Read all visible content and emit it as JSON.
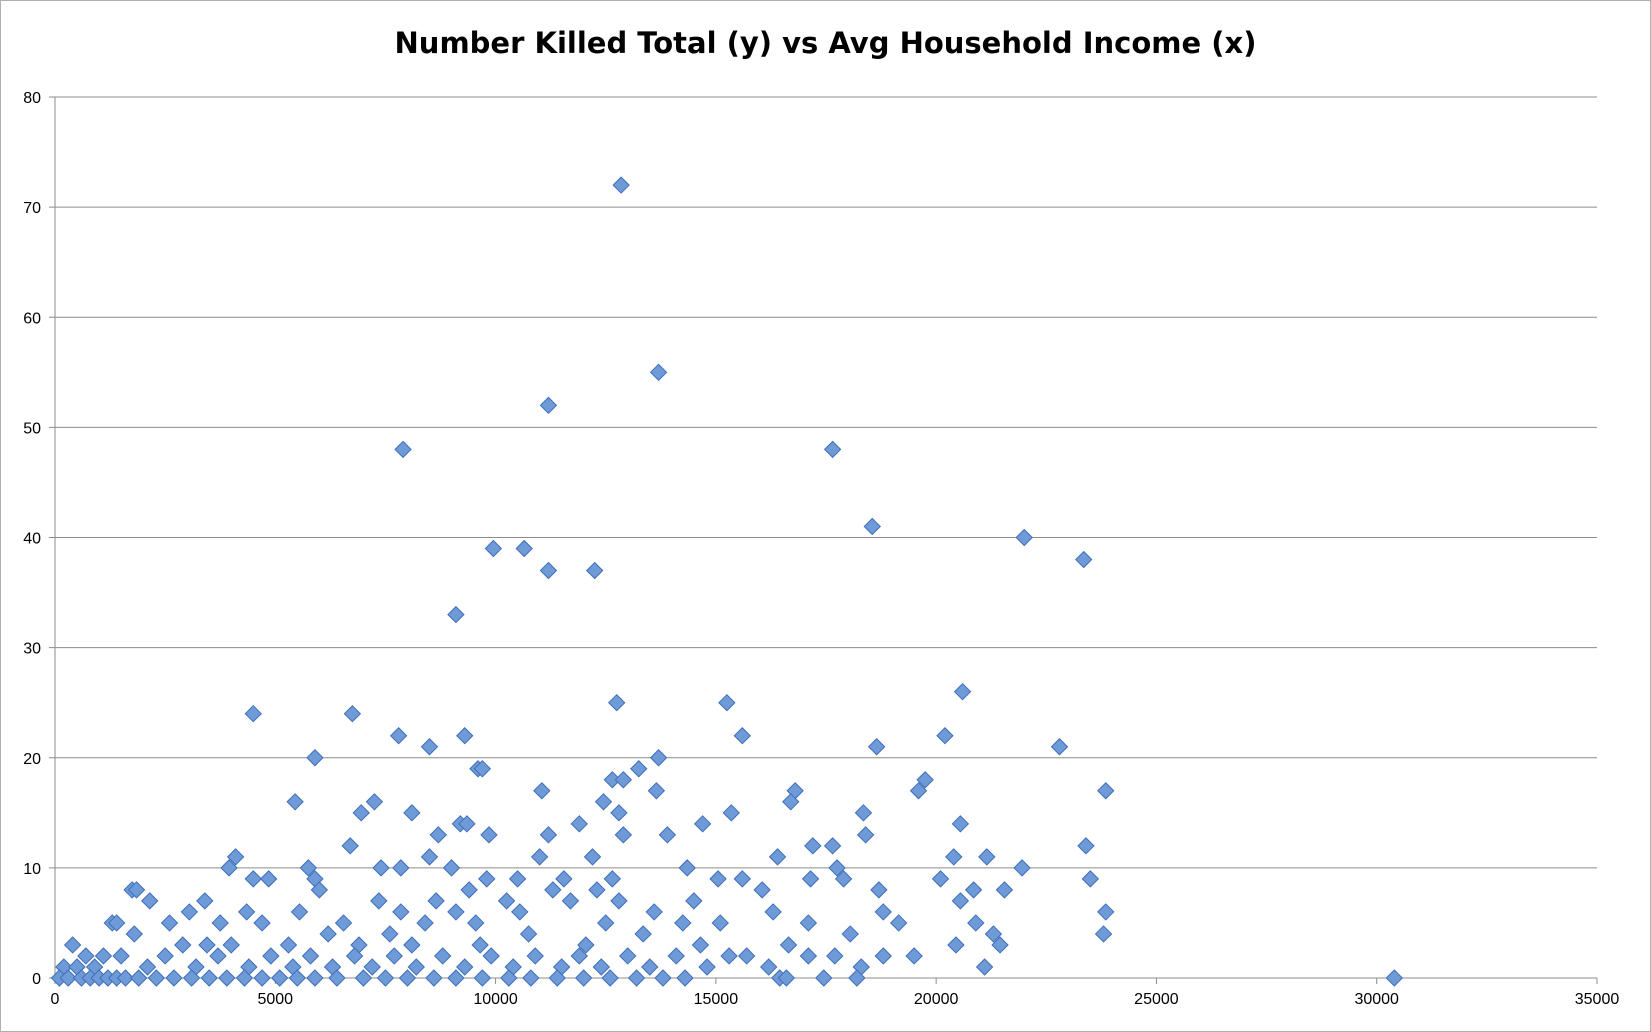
{
  "chart_data": {
    "type": "scatter",
    "title": "Number Killed Total (y) vs Avg Household Income (x)",
    "xlabel": "",
    "ylabel": "",
    "xlim": [
      0,
      35000
    ],
    "ylim": [
      0,
      80
    ],
    "x_ticks": [
      "0",
      "5000",
      "10000",
      "15000",
      "20000",
      "25000",
      "30000",
      "35000"
    ],
    "y_ticks": [
      "0",
      "10",
      "20",
      "30",
      "40",
      "50",
      "60",
      "70",
      "80"
    ],
    "grid": "horizontal",
    "legend": "none",
    "marker": "diamond",
    "colors": {
      "marker_fill": "#6f9ad8",
      "marker_stroke": "#3f6fb8",
      "grid": "#8c8c8c"
    },
    "points": [
      [
        12850,
        72
      ],
      [
        13700,
        55
      ],
      [
        11200,
        52
      ],
      [
        7900,
        48
      ],
      [
        17650,
        48
      ],
      [
        18550,
        41
      ],
      [
        22000,
        40
      ],
      [
        9950,
        39
      ],
      [
        10650,
        39
      ],
      [
        11200,
        37
      ],
      [
        12250,
        37
      ],
      [
        23350,
        38
      ],
      [
        9100,
        33
      ],
      [
        20600,
        26
      ],
      [
        12750,
        25
      ],
      [
        15250,
        25
      ],
      [
        4500,
        24
      ],
      [
        6750,
        24
      ],
      [
        7800,
        22
      ],
      [
        9300,
        22
      ],
      [
        15600,
        22
      ],
      [
        20200,
        22
      ],
      [
        8500,
        21
      ],
      [
        18650,
        21
      ],
      [
        22800,
        21
      ],
      [
        5900,
        20
      ],
      [
        13700,
        20
      ],
      [
        9600,
        19
      ],
      [
        9700,
        19
      ],
      [
        13250,
        19
      ],
      [
        12650,
        18
      ],
      [
        12900,
        18
      ],
      [
        19750,
        18
      ],
      [
        11050,
        17
      ],
      [
        13650,
        17
      ],
      [
        16800,
        17
      ],
      [
        19600,
        17
      ],
      [
        23850,
        17
      ],
      [
        5450,
        16
      ],
      [
        7250,
        16
      ],
      [
        12450,
        16
      ],
      [
        16700,
        16
      ],
      [
        6950,
        15
      ],
      [
        8100,
        15
      ],
      [
        12800,
        15
      ],
      [
        15350,
        15
      ],
      [
        18350,
        15
      ],
      [
        9200,
        14
      ],
      [
        9350,
        14
      ],
      [
        11900,
        14
      ],
      [
        14700,
        14
      ],
      [
        20550,
        14
      ],
      [
        8700,
        13
      ],
      [
        9850,
        13
      ],
      [
        11200,
        13
      ],
      [
        12900,
        13
      ],
      [
        13900,
        13
      ],
      [
        18400,
        13
      ],
      [
        6700,
        12
      ],
      [
        17200,
        12
      ],
      [
        17650,
        12
      ],
      [
        23400,
        12
      ],
      [
        3950,
        10
      ],
      [
        4100,
        11
      ],
      [
        5750,
        10
      ],
      [
        7400,
        10
      ],
      [
        7850,
        10
      ],
      [
        8500,
        11
      ],
      [
        9000,
        10
      ],
      [
        11000,
        11
      ],
      [
        12200,
        11
      ],
      [
        14350,
        10
      ],
      [
        16400,
        11
      ],
      [
        17750,
        10
      ],
      [
        20400,
        11
      ],
      [
        21150,
        11
      ],
      [
        21950,
        10
      ],
      [
        4500,
        9
      ],
      [
        4850,
        9
      ],
      [
        5900,
        9
      ],
      [
        9800,
        9
      ],
      [
        10500,
        9
      ],
      [
        11550,
        9
      ],
      [
        12300,
        8
      ],
      [
        12650,
        9
      ],
      [
        15050,
        9
      ],
      [
        15600,
        9
      ],
      [
        17150,
        9
      ],
      [
        17900,
        9
      ],
      [
        20100,
        9
      ],
      [
        23500,
        9
      ],
      [
        1750,
        8
      ],
      [
        1850,
        8
      ],
      [
        3400,
        7
      ],
      [
        6000,
        8
      ],
      [
        7350,
        7
      ],
      [
        8650,
        7
      ],
      [
        9400,
        8
      ],
      [
        10250,
        7
      ],
      [
        11300,
        8
      ],
      [
        12800,
        7
      ],
      [
        14500,
        7
      ],
      [
        16050,
        8
      ],
      [
        18700,
        8
      ],
      [
        20850,
        8
      ],
      [
        21550,
        8
      ],
      [
        2150,
        7
      ],
      [
        3050,
        6
      ],
      [
        4350,
        6
      ],
      [
        5550,
        6
      ],
      [
        7850,
        6
      ],
      [
        9100,
        6
      ],
      [
        10550,
        6
      ],
      [
        11700,
        7
      ],
      [
        13600,
        6
      ],
      [
        16300,
        6
      ],
      [
        18800,
        6
      ],
      [
        20550,
        7
      ],
      [
        23850,
        6
      ],
      [
        1300,
        5
      ],
      [
        1400,
        5
      ],
      [
        2600,
        5
      ],
      [
        3750,
        5
      ],
      [
        4700,
        5
      ],
      [
        6550,
        5
      ],
      [
        7600,
        4
      ],
      [
        8400,
        5
      ],
      [
        9550,
        5
      ],
      [
        12500,
        5
      ],
      [
        14250,
        5
      ],
      [
        15100,
        5
      ],
      [
        17100,
        5
      ],
      [
        19150,
        5
      ],
      [
        20900,
        5
      ],
      [
        21300,
        4
      ],
      [
        400,
        3
      ],
      [
        1100,
        2
      ],
      [
        1800,
        4
      ],
      [
        2900,
        3
      ],
      [
        3450,
        3
      ],
      [
        4000,
        3
      ],
      [
        5300,
        3
      ],
      [
        6200,
        4
      ],
      [
        6900,
        3
      ],
      [
        8100,
        3
      ],
      [
        9650,
        3
      ],
      [
        10750,
        4
      ],
      [
        12050,
        3
      ],
      [
        13350,
        4
      ],
      [
        14650,
        3
      ],
      [
        16650,
        3
      ],
      [
        18050,
        4
      ],
      [
        20450,
        3
      ],
      [
        21450,
        3
      ],
      [
        23800,
        4
      ],
      [
        200,
        1
      ],
      [
        500,
        1
      ],
      [
        700,
        2
      ],
      [
        900,
        1
      ],
      [
        1500,
        2
      ],
      [
        2100,
        1
      ],
      [
        2500,
        2
      ],
      [
        3200,
        1
      ],
      [
        3700,
        2
      ],
      [
        4400,
        1
      ],
      [
        4900,
        2
      ],
      [
        5400,
        1
      ],
      [
        5800,
        2
      ],
      [
        6300,
        1
      ],
      [
        6800,
        2
      ],
      [
        7200,
        1
      ],
      [
        7700,
        2
      ],
      [
        8200,
        1
      ],
      [
        8800,
        2
      ],
      [
        9300,
        1
      ],
      [
        9900,
        2
      ],
      [
        10400,
        1
      ],
      [
        10900,
        2
      ],
      [
        11500,
        1
      ],
      [
        11900,
        2
      ],
      [
        12400,
        1
      ],
      [
        13000,
        2
      ],
      [
        13500,
        1
      ],
      [
        14100,
        2
      ],
      [
        14800,
        1
      ],
      [
        15300,
        2
      ],
      [
        15700,
        2
      ],
      [
        16200,
        1
      ],
      [
        17100,
        2
      ],
      [
        17700,
        2
      ],
      [
        18300,
        1
      ],
      [
        18800,
        2
      ],
      [
        19500,
        2
      ],
      [
        21100,
        1
      ],
      [
        100,
        0
      ],
      [
        300,
        0
      ],
      [
        600,
        0
      ],
      [
        800,
        0
      ],
      [
        1000,
        0
      ],
      [
        1200,
        0
      ],
      [
        1400,
        0
      ],
      [
        1600,
        0
      ],
      [
        1900,
        0
      ],
      [
        2300,
        0
      ],
      [
        2700,
        0
      ],
      [
        3100,
        0
      ],
      [
        3500,
        0
      ],
      [
        3900,
        0
      ],
      [
        4300,
        0
      ],
      [
        4700,
        0
      ],
      [
        5100,
        0
      ],
      [
        5500,
        0
      ],
      [
        5900,
        0
      ],
      [
        6400,
        0
      ],
      [
        7000,
        0
      ],
      [
        7500,
        0
      ],
      [
        8000,
        0
      ],
      [
        8600,
        0
      ],
      [
        9100,
        0
      ],
      [
        9700,
        0
      ],
      [
        10300,
        0
      ],
      [
        10800,
        0
      ],
      [
        11400,
        0
      ],
      [
        12000,
        0
      ],
      [
        12600,
        0
      ],
      [
        13200,
        0
      ],
      [
        13800,
        0
      ],
      [
        14300,
        0
      ],
      [
        16450,
        0
      ],
      [
        16600,
        0
      ],
      [
        17450,
        0
      ],
      [
        18200,
        0
      ],
      [
        30400,
        0
      ]
    ]
  }
}
